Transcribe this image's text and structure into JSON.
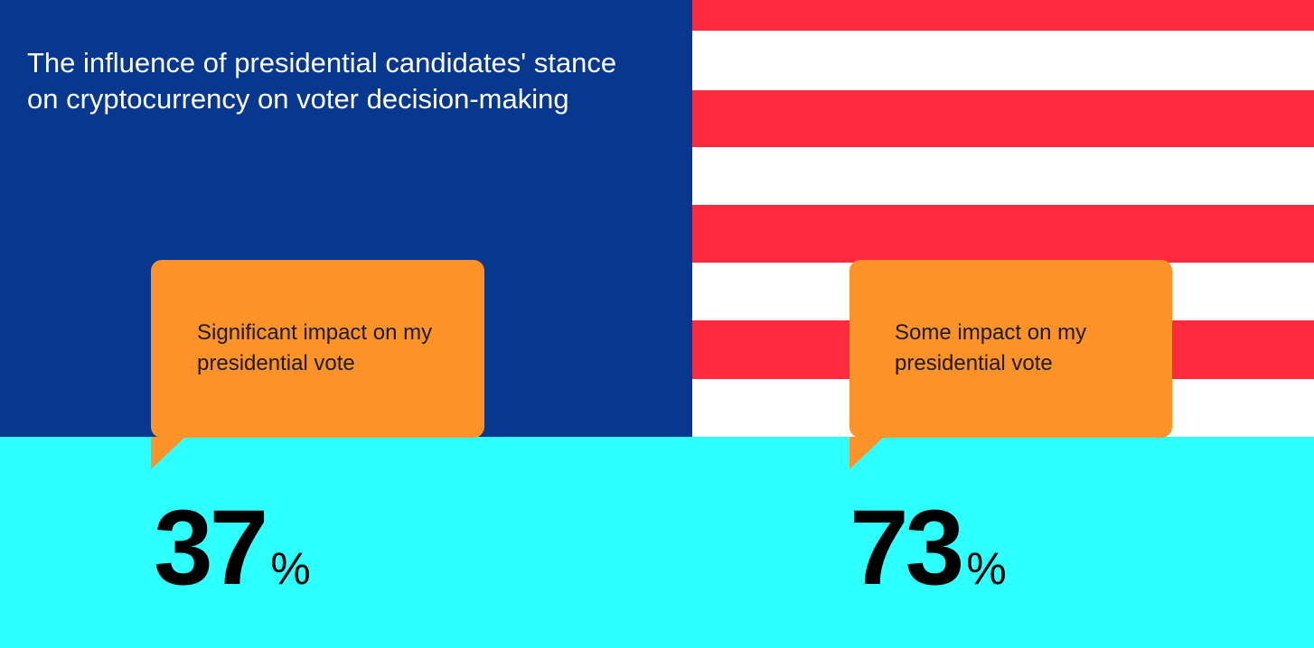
{
  "title": "The influence of presidential candidates' stance on cryptocurrency on voter decision-making",
  "stats": [
    {
      "label": "Significant impact on my presidential vote",
      "value": 37,
      "unit": "%"
    },
    {
      "label": "Some impact on my presidential vote",
      "value": 73,
      "unit": "%"
    }
  ]
}
